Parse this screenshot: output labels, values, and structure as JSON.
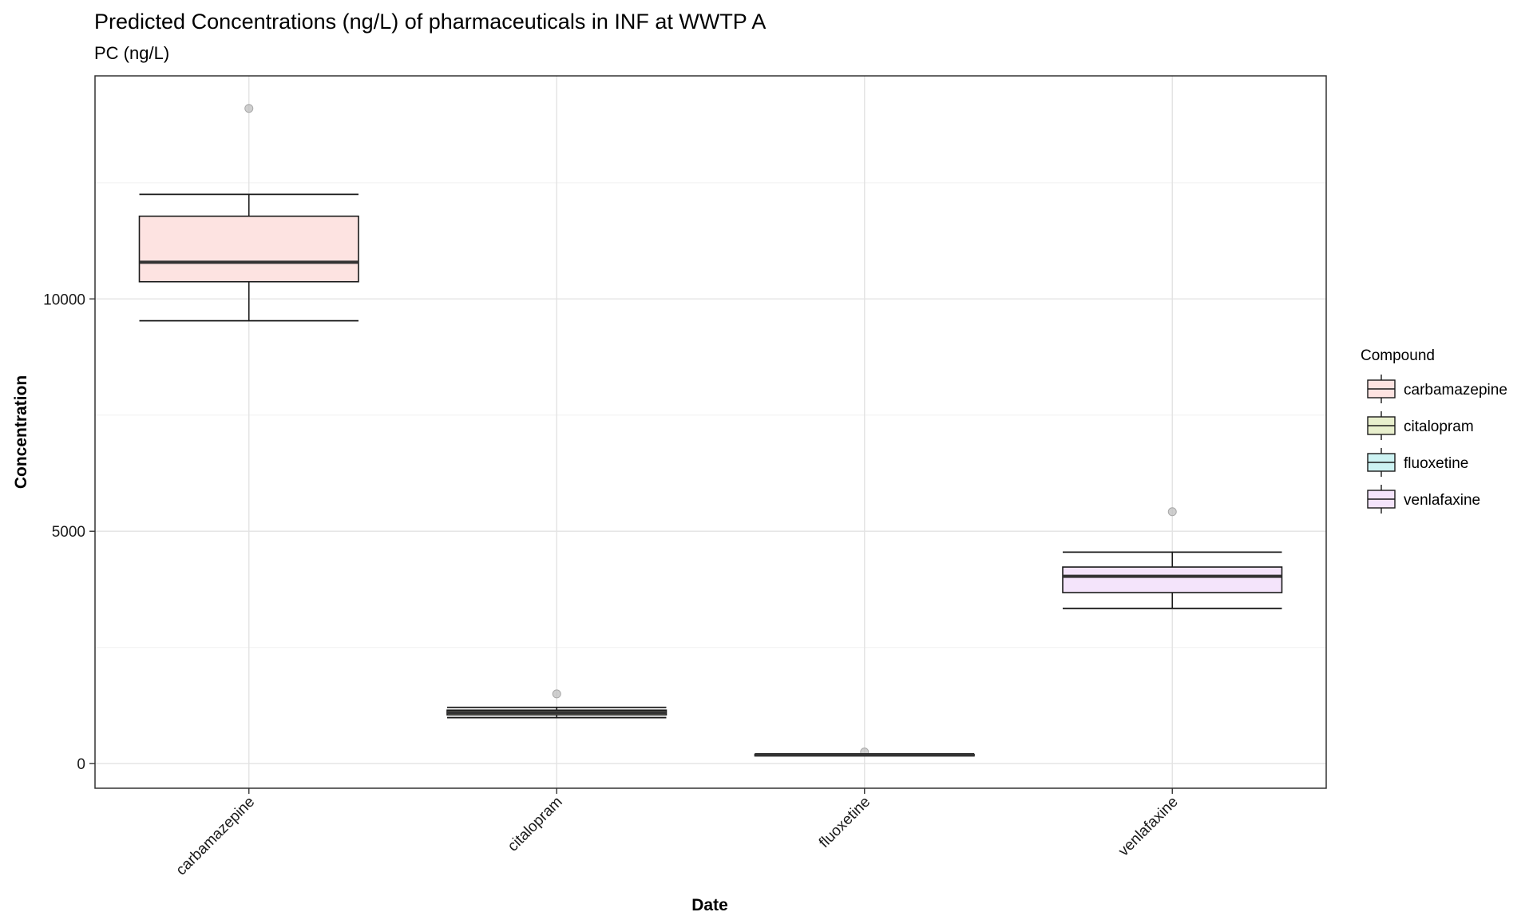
{
  "chart_data": {
    "type": "boxplot",
    "title": "Predicted Concentrations (ng/L) of pharmaceuticals in INF at WWTP A",
    "subtitle": "PC (ng/L)",
    "xlabel": "Date",
    "ylabel": "Concentration",
    "ylim": [
      -530,
      14800
    ],
    "y_ticks": [
      0,
      5000,
      10000
    ],
    "grid": true,
    "legend": {
      "title": "Compound",
      "position": "right"
    },
    "categories": [
      "carbamazepine",
      "citalopram",
      "fluoxetine",
      "venlafaxine"
    ],
    "series": [
      {
        "name": "carbamazepine",
        "color": "#fde3e1",
        "whisker_low": 9530,
        "q1": 10370,
        "median": 10790,
        "q3": 11780,
        "whisker_high": 12250,
        "outliers": [
          14100
        ]
      },
      {
        "name": "citalopram",
        "color": "#e8efcd",
        "whisker_low": 990,
        "q1": 1050,
        "median": 1100,
        "q3": 1150,
        "whisker_high": 1210,
        "outliers": [
          1500
        ]
      },
      {
        "name": "fluoxetine",
        "color": "#cdf3f3",
        "whisker_low": 170,
        "q1": 180,
        "median": 190,
        "q3": 200,
        "whisker_high": 210,
        "outliers": [
          250
        ]
      },
      {
        "name": "venlafaxine",
        "color": "#f4e4fb",
        "whisker_low": 3340,
        "q1": 3680,
        "median": 4030,
        "q3": 4230,
        "whisker_high": 4550,
        "outliers": [
          5420
        ]
      }
    ]
  }
}
